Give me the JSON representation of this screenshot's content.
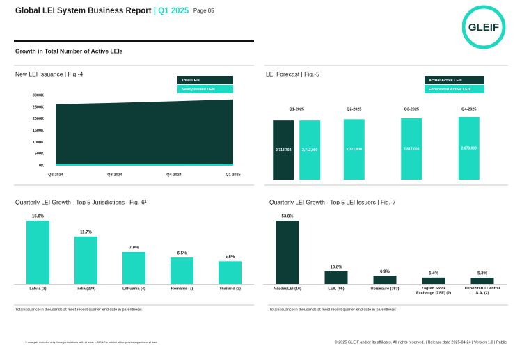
{
  "header": {
    "title": "Global LEI System Business Report",
    "quarter": "Q1 2025",
    "page": "Page 05"
  },
  "logo": "GLEIF",
  "section_title": "Growth in Total Number of Active LEIs",
  "chart_data": [
    {
      "type": "area",
      "title": "New LEI Issuance | Fig.-4",
      "categories": [
        "Q2-2024",
        "Q3-2024",
        "Q4-2024",
        "Q1-2025"
      ],
      "series": [
        {
          "name": "Total LEIs",
          "color": "#0d3b36",
          "values": [
            2620,
            2680,
            2750,
            2830
          ]
        },
        {
          "name": "Newly Issued LEIs",
          "color": "#1dd9c2",
          "values": [
            75,
            72,
            70,
            78
          ]
        }
      ],
      "ylim": [
        0,
        3000
      ],
      "yticks": [
        {
          "value": 0,
          "label": "0K"
        },
        {
          "value": 500,
          "label": "500K"
        },
        {
          "value": 1000,
          "label": "1000K"
        },
        {
          "value": 1500,
          "label": "1500K"
        },
        {
          "value": 2000,
          "label": "2000K"
        },
        {
          "value": 2500,
          "label": "2500K"
        },
        {
          "value": 3000,
          "label": "3000K"
        }
      ],
      "legend": "top-right"
    },
    {
      "type": "bar",
      "title": "LEI Forecast | Fig.-5",
      "categories": [
        "Q1-2025",
        "Q2-2025",
        "Q3-2025",
        "Q4-2025"
      ],
      "series": [
        {
          "name": "Actual Active LEIs",
          "color": "#0d3b36",
          "values": [
            2713702,
            null,
            null,
            null
          ],
          "value_labels": [
            "2,713,702",
            null,
            null,
            null
          ]
        },
        {
          "name": "Forecasted Active LEIs",
          "color": "#1dd9c2",
          "values": [
            2713000,
            2771000,
            2817000,
            2878000
          ],
          "value_labels": [
            "2,713,000",
            "2,771,000",
            "2,817,000",
            "2,878,000"
          ]
        }
      ],
      "legend": "top-right"
    },
    {
      "type": "bar",
      "title": "Quarterly LEI Growth - Top 5 Jurisdictions | Fig.-6¹",
      "categories": [
        "Latvia (3)",
        "India (239)",
        "Lithuania (4)",
        "Romania (7)",
        "Thailand (2)"
      ],
      "values": [
        15.6,
        11.7,
        7.9,
        6.5,
        5.6
      ],
      "value_labels": [
        "15.6%",
        "11.7%",
        "7.9%",
        "6.5%",
        "5.6%"
      ],
      "color": "#1dd9c2"
    },
    {
      "type": "bar",
      "title": "Quarterly LEI Growth - Top 5 LEI Issuers | Fig.-7",
      "categories": [
        "NasdaqLEI (16)",
        "LEIL (95)",
        "Ubisecure (383)",
        "Zagreb Stock Exchange (ZSE) (2)",
        "Depozitarul Central S.A. (2)"
      ],
      "values": [
        53.8,
        10.8,
        6.9,
        5.4,
        5.3
      ],
      "value_labels": [
        "53.8%",
        "10.8%",
        "6.9%",
        "5.4%",
        "5.3%"
      ],
      "color": "#0d3b36"
    }
  ],
  "notes": [
    "Total issuance in thousands at most recent quarter-end date in parenthesis",
    "Total issuance in thousands at most recent quarter-end date in parenthesis"
  ],
  "footnote": "1. Analysis includes only those jurisdictions with at least 1,000 LEIs in total at the previous quarter-end date.",
  "footer": "© 2025 GLEIF and/or its affiliates. All rights reserved. | Release date 2025-04-24 | Version 1.0 | Public"
}
